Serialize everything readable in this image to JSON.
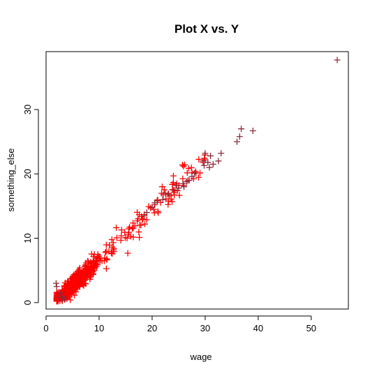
{
  "chart_data": {
    "type": "scatter",
    "title": "Plot X vs. Y",
    "xlabel": "wage",
    "ylabel": "something_else",
    "xlim": [
      0,
      57
    ],
    "ylim": [
      -1,
      39
    ],
    "x_ticks": [
      0,
      10,
      20,
      30,
      40,
      50
    ],
    "y_ticks": [
      0,
      10,
      20,
      30
    ],
    "grid": false,
    "legend": "none",
    "marker": "plus",
    "marker_color": "#ff0000",
    "marker_outline_color": "#8b2a3a",
    "outliers": {
      "x": [
        54.9,
        39.0,
        36.8,
        36.5,
        36.0,
        33.0,
        32.5,
        31.0,
        30.5,
        30.0,
        29.6,
        29.8,
        31.5,
        30.8,
        28.0,
        27.5,
        26.5,
        25.8,
        25.0,
        24.5,
        24.0,
        23.0,
        22.5,
        22.0,
        21.0,
        20.5,
        20.0,
        19.0,
        18.5,
        27.0,
        26.0,
        3.0,
        2.5,
        2.0,
        3.2,
        2.8,
        1.9,
        3.5
      ],
      "y": [
        37.7,
        26.7,
        27.0,
        25.8,
        25.0,
        23.2,
        22.0,
        22.8,
        21.8,
        23.2,
        22.0,
        21.3,
        21.5,
        21.0,
        20.1,
        19.6,
        18.8,
        18.5,
        17.8,
        18.2,
        17.5,
        16.8,
        17.0,
        16.0,
        15.8,
        15.5,
        14.8,
        14.0,
        13.5,
        19.0,
        18.0,
        0.3,
        0.8,
        2.5,
        1.0,
        1.5,
        3.0,
        0.6
      ]
    },
    "cloud": {
      "count": 520,
      "x_range": [
        2,
        30
      ],
      "x_mode": 6,
      "slope": 0.78,
      "intercept": -1.2,
      "spread": 1.1
    }
  }
}
